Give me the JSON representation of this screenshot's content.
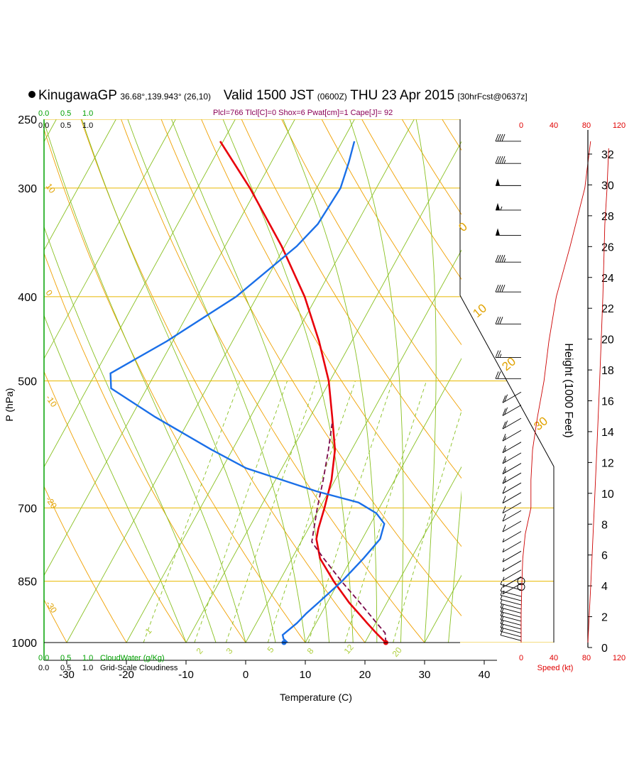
{
  "header": {
    "station": "KinugawaGP",
    "coords": "36.68°,139.943° (26,10)",
    "valid": "Valid 1500 JST",
    "zulu": "(0600Z)",
    "date": "THU 23 Apr 2015",
    "forecast": "[30hrFcst@0637z]"
  },
  "stats": "Plcl=766 Tlcl[C]=0 Shox=6 Pwat[cm]=1 Cape[J]= 92",
  "colors": {
    "temperature": "#e8000b",
    "dewpoint": "#1a6fe8",
    "parcel": "#7a0a4a",
    "isobar": "#e8b800",
    "dry_adiabat": "#f0a000",
    "moist_adiabat": "#88c020",
    "mixing_ratio": "#88c020",
    "height_curve": "#cc0000",
    "cloud_axis": "#00a000",
    "speed_axis": "#e00000"
  },
  "cloud": {
    "top_ticks": [
      "0.0",
      "0.5",
      "1.0"
    ],
    "bottom_ticks": [
      "0.0",
      "0.5",
      "1.0"
    ],
    "water_label": "CloudWater (g/Kg)",
    "cover_label": "Grid-Scale Cloudiness"
  },
  "speed": {
    "ticks": [
      "0",
      "40",
      "80",
      "120"
    ],
    "label": "Speed (kt)"
  },
  "chart_data": {
    "type": "line",
    "title": "KinugawaGP Valid 1500 JST THU 23 Apr 2015",
    "xlabel": "Temperature (C)",
    "ylabel": "P (hPa)",
    "y2label": "Height (1000 Feet)",
    "xlim": [
      -34,
      37
    ],
    "ylim": [
      1000,
      250
    ],
    "yscale": "log",
    "x_ticks": [
      "-30",
      "-20",
      "-10",
      "0",
      "10",
      "20",
      "30",
      "40"
    ],
    "y_ticks": [
      "250",
      "300",
      "400",
      "500",
      "700",
      "850",
      "1000"
    ],
    "height_ticks": [
      "0",
      "2",
      "4",
      "6",
      "8",
      "10",
      "12",
      "14",
      "16",
      "18",
      "20",
      "22",
      "24",
      "26",
      "28",
      "30",
      "32"
    ],
    "dry_adiabat_labels": [
      "10",
      "0",
      "-10",
      "-20",
      "-30"
    ],
    "moist_adiabat_labels": [
      "0",
      "10",
      "20",
      "30"
    ],
    "mixing_ratio_labels": [
      "1",
      "2",
      "3",
      "5",
      "8",
      "12",
      "20"
    ],
    "series": [
      {
        "name": "Temperature",
        "p": [
          1000,
          990,
          975,
          950,
          925,
          900,
          850,
          800,
          760,
          740,
          700,
          650,
          600,
          550,
          500,
          450,
          400,
          350,
          300,
          265
        ],
        "t": [
          23.5,
          22.5,
          21.0,
          18.6,
          16.2,
          13.7,
          9.1,
          4.7,
          2.3,
          1.7,
          0.8,
          -0.6,
          -2.8,
          -6.3,
          -10.2,
          -15.5,
          -22.0,
          -30.5,
          -41.2,
          -50.5
        ]
      },
      {
        "name": "Dewpoint",
        "p": [
          1000,
          990,
          980,
          950,
          925,
          900,
          850,
          800,
          760,
          730,
          710,
          690,
          670,
          630,
          600,
          550,
          510,
          490,
          450,
          400,
          350,
          330,
          300,
          280,
          265
        ],
        "t": [
          7.0,
          6.0,
          5.5,
          6.8,
          7.5,
          8.5,
          10.5,
          12.0,
          13.0,
          12.3,
          10.0,
          6.0,
          -2.0,
          -16.0,
          -23.5,
          -36.0,
          -46.0,
          -47.5,
          -41.0,
          -33.5,
          -28.0,
          -26.5,
          -26.0,
          -27.0,
          -28.0
        ]
      },
      {
        "name": "Parcel",
        "p": [
          1000,
          975,
          950,
          900,
          850,
          800,
          766,
          700,
          650,
          600,
          560
        ],
        "t": [
          23.5,
          22.5,
          20.2,
          15.5,
          10.4,
          5.3,
          1.8,
          -0.4,
          -2.0,
          -3.9,
          -5.7
        ]
      }
    ],
    "winds": [
      {
        "p": 995,
        "speed": 9
      },
      {
        "p": 985,
        "speed": 9
      },
      {
        "p": 975,
        "speed": 10
      },
      {
        "p": 965,
        "speed": 9
      },
      {
        "p": 955,
        "speed": 9
      },
      {
        "p": 945,
        "speed": 8
      },
      {
        "p": 935,
        "speed": 8
      },
      {
        "p": 925,
        "speed": 7
      },
      {
        "p": 915,
        "speed": 6
      },
      {
        "p": 905,
        "speed": 6
      },
      {
        "p": 895,
        "speed": 5
      },
      {
        "p": 885,
        "speed": 4
      },
      {
        "p": 870,
        "speed": 3
      },
      {
        "p": 855,
        "speed": 3
      },
      {
        "p": 840,
        "speed": 3
      },
      {
        "p": 825,
        "speed": 4
      },
      {
        "p": 805,
        "speed": 5
      },
      {
        "p": 785,
        "speed": 6
      },
      {
        "p": 765,
        "speed": 7
      },
      {
        "p": 745,
        "speed": 7
      },
      {
        "p": 725,
        "speed": 8
      },
      {
        "p": 705,
        "speed": 9
      },
      {
        "p": 690,
        "speed": 10
      },
      {
        "p": 672,
        "speed": 11
      },
      {
        "p": 655,
        "speed": 12
      },
      {
        "p": 638,
        "speed": 13
      },
      {
        "p": 622,
        "speed": 14
      },
      {
        "p": 605,
        "speed": 15
      },
      {
        "p": 588,
        "speed": 16
      },
      {
        "p": 570,
        "speed": 17
      },
      {
        "p": 552,
        "speed": 18
      },
      {
        "p": 533,
        "speed": 19
      },
      {
        "p": 515,
        "speed": 19
      },
      {
        "p": 497,
        "speed": 21
      },
      {
        "p": 470,
        "speed": 25
      },
      {
        "p": 430,
        "speed": 28
      },
      {
        "p": 395,
        "speed": 40
      },
      {
        "p": 365,
        "speed": 45
      },
      {
        "p": 340,
        "speed": 50
      },
      {
        "p": 318,
        "speed": 55
      },
      {
        "p": 298,
        "speed": 50
      },
      {
        "p": 281,
        "speed": 45
      },
      {
        "p": 265,
        "speed": 40
      }
    ],
    "wind_speed_profile": {
      "p": [
        1000,
        925,
        850,
        800,
        750,
        700,
        650,
        600,
        550,
        500,
        450,
        400,
        350,
        300,
        265
      ],
      "speed": [
        0,
        0,
        1,
        2,
        5,
        12,
        12,
        14,
        20,
        28,
        34,
        43,
        60,
        78,
        85
      ]
    }
  }
}
